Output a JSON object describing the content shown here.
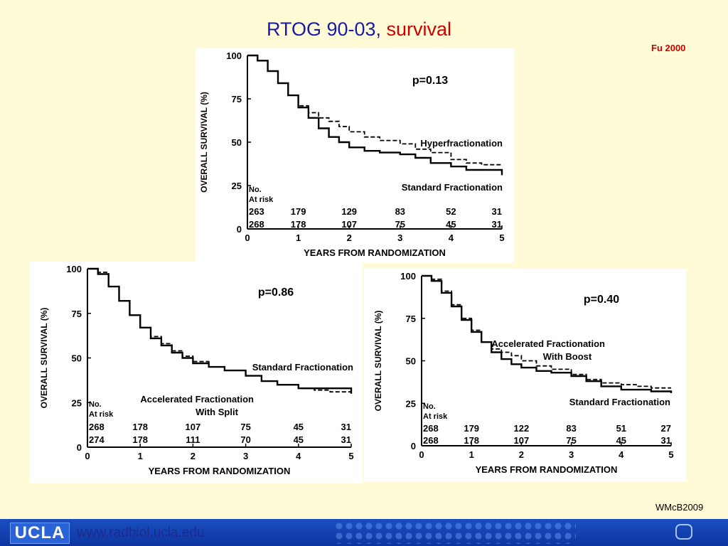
{
  "slide": {
    "title_main": "RTOG 90-03,",
    "title_accent": "survival",
    "citation": "Fu 2000",
    "credit": "WMcB2009"
  },
  "footer": {
    "logo_text": "UCLA",
    "url": "www.radbiol.ucla.edu",
    "nav_icon": "rounded-square-icon"
  },
  "colors": {
    "background": "#fffbd6",
    "title": "#1a1aa8",
    "accent": "#d00000",
    "footer": "#1a4fc0"
  },
  "chart_data": [
    {
      "type": "line",
      "ylabel": "OVERALL SURVIVAL (%)",
      "xlabel": "YEARS FROM RANDOMIZATION",
      "xlim": [
        0,
        5
      ],
      "ylim": [
        0,
        100
      ],
      "xticks": [
        "0",
        "1",
        "2",
        "3",
        "4",
        "5"
      ],
      "yticks": [
        "0",
        "25",
        "50",
        "75",
        "100"
      ],
      "p_value": "p=0.13",
      "at_risk_label": [
        "No.",
        "At risk"
      ],
      "series": [
        {
          "name": "Hyperfractionation",
          "style": "dashed",
          "x": [
            0,
            0.2,
            0.4,
            0.6,
            0.8,
            1.0,
            1.2,
            1.4,
            1.6,
            1.8,
            2.0,
            2.3,
            2.6,
            3.0,
            3.3,
            3.6,
            4.0,
            4.3,
            4.6,
            5.0
          ],
          "y": [
            100,
            97,
            91,
            84,
            77,
            71,
            67,
            64,
            62,
            59,
            56,
            53,
            51,
            49,
            46,
            44,
            40,
            38,
            37,
            37
          ],
          "at_risk": [
            "263",
            "179",
            "129",
            "83",
            "52",
            "31"
          ]
        },
        {
          "name": "Standard Fractionation",
          "style": "solid",
          "x": [
            0,
            0.2,
            0.4,
            0.6,
            0.8,
            1.0,
            1.2,
            1.4,
            1.6,
            1.8,
            2.0,
            2.3,
            2.6,
            3.0,
            3.3,
            3.6,
            4.0,
            4.3,
            4.6,
            5.0
          ],
          "y": [
            100,
            97,
            91,
            84,
            77,
            70,
            64,
            58,
            53,
            50,
            47,
            45,
            44,
            43,
            41,
            38,
            36,
            34,
            34,
            31
          ],
          "at_risk": [
            "268",
            "178",
            "107",
            "75",
            "45",
            "31"
          ]
        }
      ]
    },
    {
      "type": "line",
      "ylabel": "OVERALL SURVIVAL (%)",
      "xlabel": "YEARS FROM RANDOMIZATION",
      "xlim": [
        0,
        5
      ],
      "ylim": [
        0,
        100
      ],
      "xticks": [
        "0",
        "1",
        "2",
        "3",
        "4",
        "5"
      ],
      "yticks": [
        "0",
        "25",
        "50",
        "75",
        "100"
      ],
      "p_value": "p=0.86",
      "at_risk_label": [
        "No.",
        "At risk"
      ],
      "series": [
        {
          "name": "Standard Fractionation",
          "style": "solid",
          "x": [
            0,
            0.2,
            0.4,
            0.6,
            0.8,
            1.0,
            1.2,
            1.4,
            1.6,
            1.8,
            2.0,
            2.3,
            2.6,
            3.0,
            3.3,
            3.6,
            4.0,
            4.3,
            4.6,
            5.0
          ],
          "y": [
            100,
            97,
            90,
            82,
            74,
            67,
            61,
            57,
            53,
            50,
            47,
            45,
            43,
            40,
            37,
            35,
            33,
            33,
            33,
            30
          ],
          "at_risk": [
            "268",
            "178",
            "107",
            "75",
            "45",
            "31"
          ]
        },
        {
          "name": "Accelerated Fractionation With Split",
          "label_lines": [
            "Accelerated Fractionation",
            "With Split"
          ],
          "style": "dashed",
          "x": [
            0,
            0.2,
            0.4,
            0.6,
            0.8,
            1.0,
            1.2,
            1.4,
            1.6,
            1.8,
            2.0,
            2.3,
            2.6,
            3.0,
            3.3,
            3.6,
            4.0,
            4.3,
            4.6,
            5.0
          ],
          "y": [
            100,
            98,
            90,
            82,
            74,
            67,
            62,
            58,
            54,
            51,
            48,
            45,
            43,
            40,
            37,
            35,
            33,
            32,
            31,
            30
          ],
          "at_risk": [
            "274",
            "178",
            "111",
            "70",
            "45",
            "31"
          ]
        }
      ]
    },
    {
      "type": "line",
      "ylabel": "OVERALL SURVIVAL (%)",
      "xlabel": "YEARS FROM RANDOMIZATION",
      "xlim": [
        0,
        5
      ],
      "ylim": [
        0,
        100
      ],
      "xticks": [
        "0",
        "1",
        "2",
        "3",
        "4",
        "5"
      ],
      "yticks": [
        "0",
        "25",
        "50",
        "75",
        "100"
      ],
      "p_value": "p=0.40",
      "at_risk_label": [
        "No.",
        "At risk"
      ],
      "series": [
        {
          "name": "Accelerated Fractionation With Boost",
          "label_lines": [
            "Accelerated Fractionation",
            "With Boost"
          ],
          "style": "dashed",
          "x": [
            0,
            0.2,
            0.4,
            0.6,
            0.8,
            1.0,
            1.2,
            1.4,
            1.6,
            1.8,
            2.0,
            2.3,
            2.6,
            3.0,
            3.3,
            3.6,
            4.0,
            4.3,
            4.6,
            5.0
          ],
          "y": [
            100,
            98,
            91,
            83,
            75,
            68,
            61,
            57,
            55,
            53,
            50,
            47,
            45,
            42,
            39,
            37,
            36,
            35,
            34,
            34
          ],
          "at_risk": [
            "268",
            "179",
            "122",
            "83",
            "51",
            "27"
          ]
        },
        {
          "name": "Standard Fractionation",
          "style": "solid",
          "x": [
            0,
            0.2,
            0.4,
            0.6,
            0.8,
            1.0,
            1.2,
            1.4,
            1.6,
            1.8,
            2.0,
            2.3,
            2.6,
            3.0,
            3.3,
            3.6,
            4.0,
            4.3,
            4.6,
            5.0
          ],
          "y": [
            100,
            97,
            90,
            82,
            74,
            67,
            61,
            55,
            51,
            48,
            46,
            44,
            43,
            41,
            38,
            35,
            33,
            33,
            32,
            31
          ],
          "at_risk": [
            "268",
            "178",
            "107",
            "75",
            "45",
            "31"
          ]
        }
      ]
    }
  ]
}
